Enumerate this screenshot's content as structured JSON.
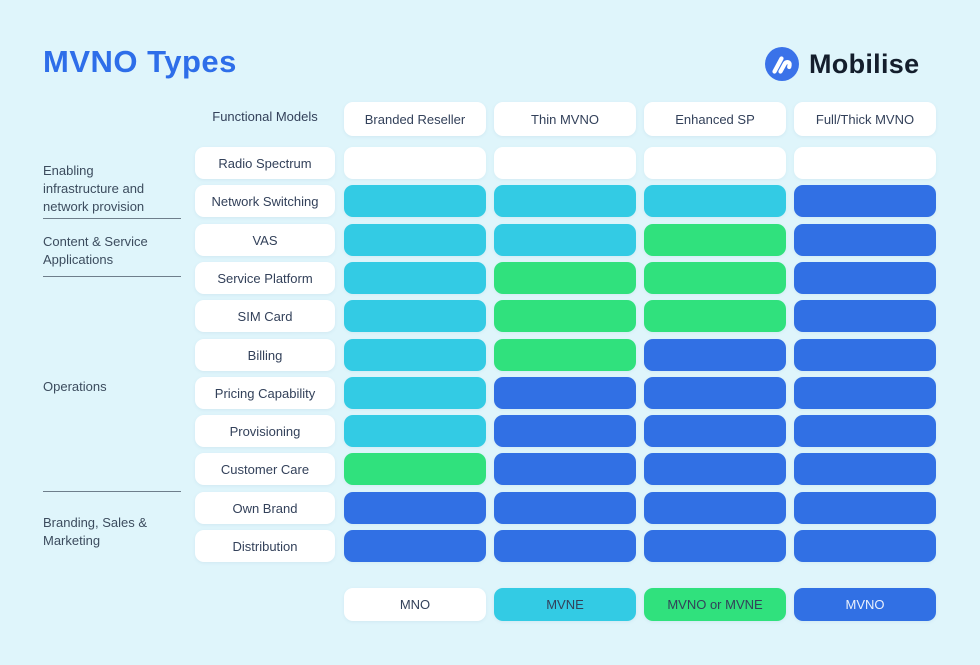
{
  "page": {
    "background": "#dff5fb"
  },
  "header": {
    "title": "MVNO Types",
    "logo_text": "Mobilise"
  },
  "colors": {
    "mno": "#ffffff",
    "mvne": "#33cbe4",
    "mvno_or_mvne": "#30e17d",
    "mvno": "#3170e4",
    "title_accent": "#2e6ee9",
    "logo_blue": "#3a72e9",
    "text_dark": "#33415a"
  },
  "matrix": {
    "corner_label": "Functional Models",
    "columns": [
      "Branded Reseller",
      "Thin MVNO",
      "Enhanced SP",
      "Full/Thick MVNO"
    ],
    "rows": [
      {
        "label": "Radio Spectrum",
        "cells": [
          "mno",
          "mno",
          "mno",
          "mno"
        ]
      },
      {
        "label": "Network Switching",
        "cells": [
          "mvne",
          "mvne",
          "mvne",
          "mvno"
        ]
      },
      {
        "label": "VAS",
        "cells": [
          "mvne",
          "mvne",
          "mvno_or_mvne",
          "mvno"
        ]
      },
      {
        "label": "Service Platform",
        "cells": [
          "mvne",
          "mvno_or_mvne",
          "mvno_or_mvne",
          "mvno"
        ]
      },
      {
        "label": "SIM Card",
        "cells": [
          "mvne",
          "mvno_or_mvne",
          "mvno_or_mvne",
          "mvno"
        ]
      },
      {
        "label": "Billing",
        "cells": [
          "mvne",
          "mvno_or_mvne",
          "mvno",
          "mvno"
        ]
      },
      {
        "label": "Pricing Capability",
        "cells": [
          "mvne",
          "mvno",
          "mvno",
          "mvno"
        ]
      },
      {
        "label": "Provisioning",
        "cells": [
          "mvne",
          "mvno",
          "mvno",
          "mvno"
        ]
      },
      {
        "label": "Customer Care",
        "cells": [
          "mvno_or_mvne",
          "mvno",
          "mvno",
          "mvno"
        ]
      },
      {
        "label": "Own Brand",
        "cells": [
          "mvno",
          "mvno",
          "mvno",
          "mvno"
        ]
      },
      {
        "label": "Distribution",
        "cells": [
          "mvno",
          "mvno",
          "mvno",
          "mvno"
        ]
      }
    ]
  },
  "groups": [
    {
      "label": "Enabling infrastructure and network provision"
    },
    {
      "label": "Content & Service Applications"
    },
    {
      "label": "Operations"
    },
    {
      "label": "Branding, Sales & Marketing"
    }
  ],
  "legend": {
    "items": [
      {
        "label": "MNO",
        "type": "mno"
      },
      {
        "label": "MVNE",
        "type": "mvne"
      },
      {
        "label": "MVNO or MVNE",
        "type": "mvno_or_mvne"
      },
      {
        "label": "MVNO",
        "type": "mvno"
      }
    ]
  }
}
